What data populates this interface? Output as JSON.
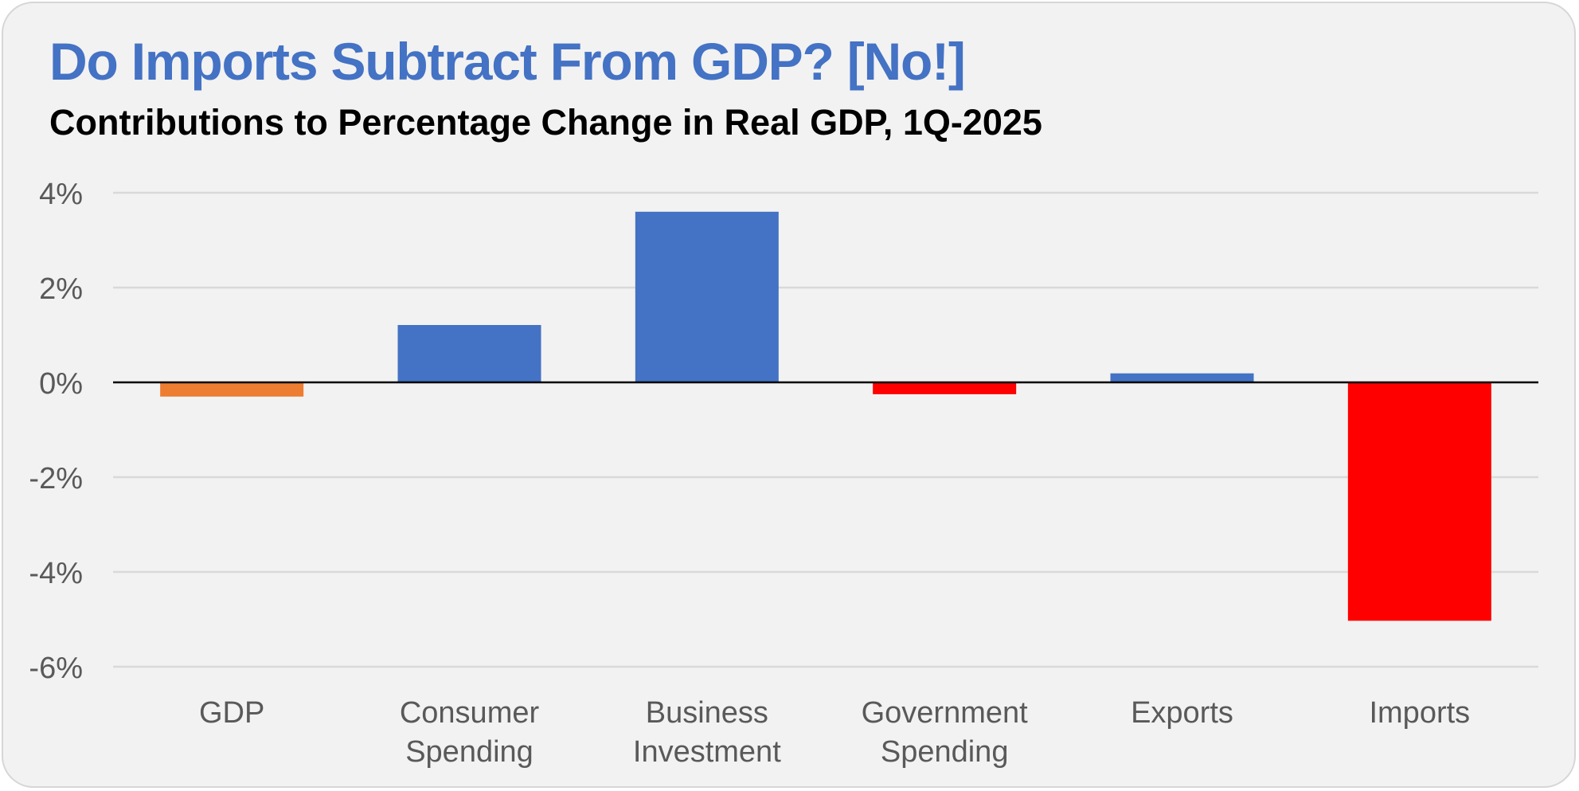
{
  "chart_data": {
    "type": "bar",
    "title": "Do Imports Subtract From GDP? [No!]",
    "subtitle": "Contributions to Percentage Change in Real GDP, 1Q-2025",
    "categories": [
      [
        "GDP"
      ],
      [
        "Consumer",
        "Spending"
      ],
      [
        "Business",
        "Investment"
      ],
      [
        "Government",
        "Spending"
      ],
      [
        "Exports"
      ],
      [
        "Imports"
      ]
    ],
    "values": [
      -0.3,
      1.21,
      3.6,
      -0.25,
      0.19,
      -5.03
    ],
    "bar_colors": [
      "#ed7d31",
      "#4472c4",
      "#4472c4",
      "#ff0000",
      "#4472c4",
      "#ff0000"
    ],
    "ylim": [
      -6,
      4
    ],
    "yticks": [
      4,
      2,
      0,
      -2,
      -4,
      -6
    ],
    "ytick_labels": [
      "4%",
      "2%",
      "0%",
      "-2%",
      "-4%",
      "-6%"
    ],
    "xlabel": "",
    "ylabel": "",
    "grid": true,
    "legend": "none",
    "colors": {
      "title": "#4472c4",
      "gridline": "#d9d9d9",
      "zero_line": "#000000",
      "tick_text": "#595959"
    }
  }
}
